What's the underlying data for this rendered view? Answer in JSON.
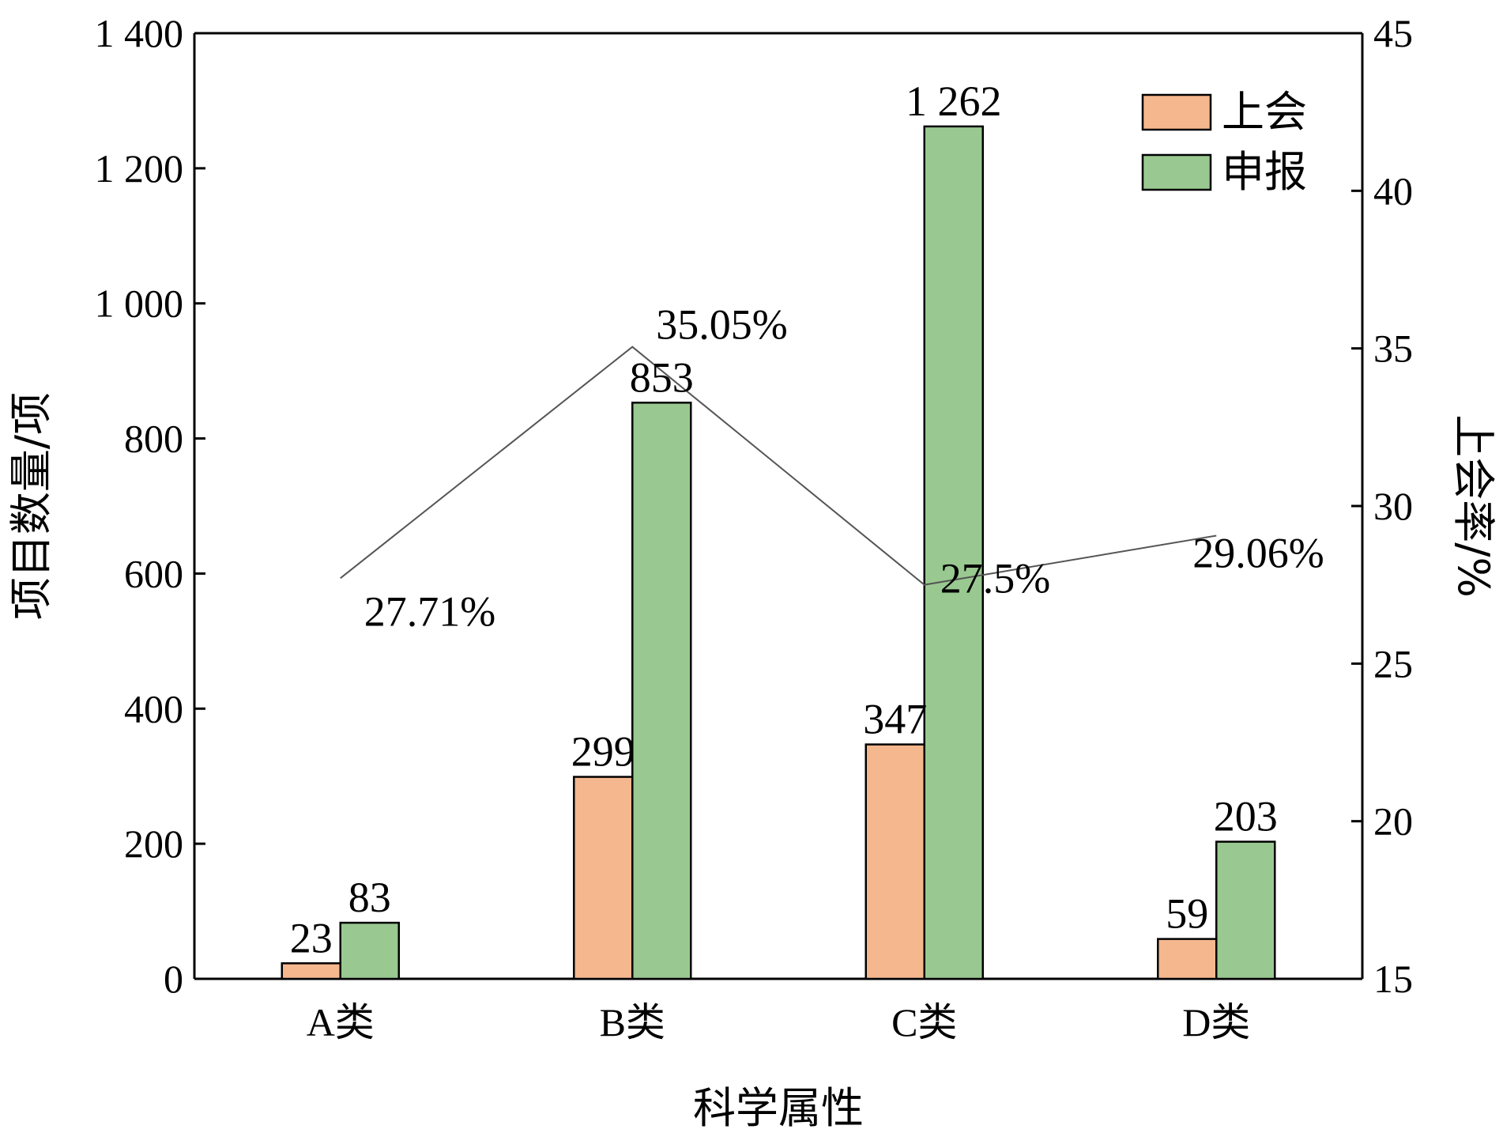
{
  "chart_data": {
    "type": "bar",
    "categories": [
      "A类",
      "B类",
      "C类",
      "D类"
    ],
    "xlabel": "科学属性",
    "ylabel": "项目数量/项",
    "y2label": "上会率/%",
    "ylim": [
      0,
      1400
    ],
    "y2lim": [
      15,
      45
    ],
    "yticks": [
      0,
      200,
      400,
      600,
      800,
      1000,
      1200,
      1400
    ],
    "yticks_labels": [
      "0",
      "200",
      "400",
      "600",
      "800",
      "1 000",
      "1 200",
      "1 400"
    ],
    "y2ticks": [
      15,
      20,
      25,
      30,
      35,
      40,
      45
    ],
    "y2ticks_labels": [
      "15",
      "20",
      "25",
      "30",
      "35",
      "40",
      "45"
    ],
    "grid": false,
    "legend_position": "top-right",
    "series": [
      {
        "name": "上会",
        "kind": "bar",
        "color": "#f5b78e",
        "values": [
          23,
          299,
          347,
          59
        ],
        "value_labels": [
          "23",
          "299",
          "347",
          "59"
        ]
      },
      {
        "name": "申报",
        "kind": "bar",
        "color": "#99c990",
        "values": [
          83,
          853,
          1262,
          203
        ],
        "value_labels": [
          "83",
          "853",
          "1 262",
          "203"
        ]
      },
      {
        "kind": "line",
        "axis": "right",
        "color": "#555555",
        "values": [
          27.71,
          35.05,
          27.5,
          29.06
        ],
        "value_labels": [
          "27.71%",
          "35.05%",
          "27.5%",
          "29.06%"
        ]
      }
    ]
  }
}
